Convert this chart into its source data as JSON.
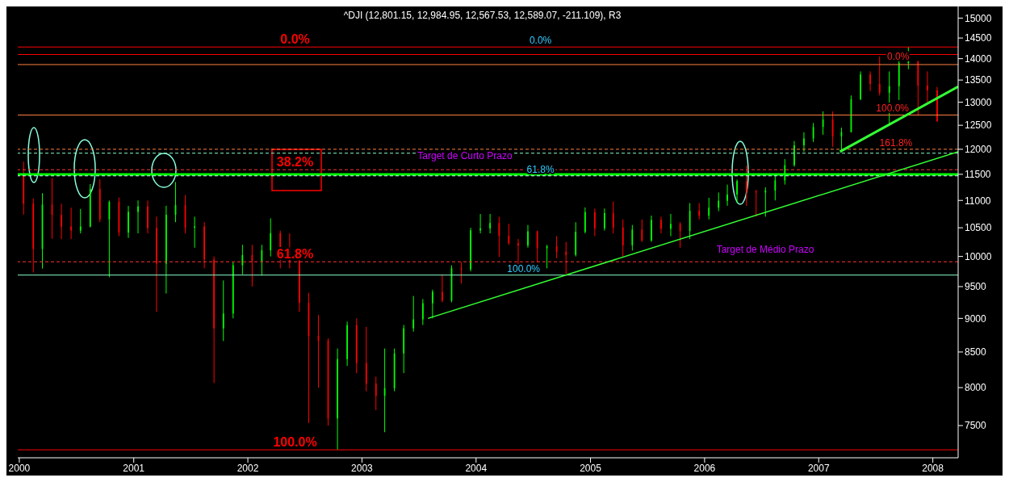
{
  "chart_data": {
    "type": "candlestick",
    "title": "^DJI (12,801.15, 12,984.95, 12,567.53, 12,589.07, -211.109), R3",
    "log": true,
    "xlim": [
      "1999-12-27",
      "2008-03-22"
    ],
    "xticks": [
      "2000",
      "2001",
      "2002",
      "2003",
      "2004",
      "2005",
      "2006",
      "2007",
      "2008"
    ],
    "ylim": [
      7100,
      15300
    ],
    "yticks": [
      7500,
      8000,
      8500,
      9000,
      9500,
      10000,
      10500,
      11000,
      11500,
      12000,
      12500,
      13000,
      13500,
      14000,
      14500,
      15000
    ],
    "x": [
      "2000-01-15",
      "2000-02-15",
      "2000-03-15",
      "2000-04-15",
      "2000-05-15",
      "2000-06-15",
      "2000-07-15",
      "2000-08-15",
      "2000-09-15",
      "2000-10-15",
      "2000-11-15",
      "2000-12-15",
      "2001-01-15",
      "2001-02-15",
      "2001-03-15",
      "2001-04-15",
      "2001-05-15",
      "2001-06-15",
      "2001-07-15",
      "2001-08-15",
      "2001-09-15",
      "2001-10-15",
      "2001-11-15",
      "2001-12-15",
      "2002-01-15",
      "2002-02-15",
      "2002-03-15",
      "2002-04-15",
      "2002-05-15",
      "2002-06-15",
      "2002-07-15",
      "2002-08-15",
      "2002-09-15",
      "2002-10-15",
      "2002-11-15",
      "2002-12-15",
      "2003-01-15",
      "2003-02-15",
      "2003-03-15",
      "2003-04-15",
      "2003-05-15",
      "2003-06-15",
      "2003-07-15",
      "2003-08-15",
      "2003-09-15",
      "2003-10-15",
      "2003-11-15",
      "2003-12-15",
      "2004-01-15",
      "2004-02-15",
      "2004-03-15",
      "2004-04-15",
      "2004-05-15",
      "2004-06-15",
      "2004-07-15",
      "2004-08-15",
      "2004-09-15",
      "2004-10-15",
      "2004-11-15",
      "2004-12-15",
      "2005-01-15",
      "2005-02-15",
      "2005-03-15",
      "2005-04-15",
      "2005-05-15",
      "2005-06-15",
      "2005-07-15",
      "2005-08-15",
      "2005-09-15",
      "2005-10-15",
      "2005-11-15",
      "2005-12-15",
      "2006-01-15",
      "2006-02-15",
      "2006-03-15",
      "2006-04-15",
      "2006-05-15",
      "2006-06-15",
      "2006-07-15",
      "2006-08-15",
      "2006-09-15",
      "2006-10-15",
      "2006-11-15",
      "2006-12-15",
      "2007-01-15",
      "2007-02-15",
      "2007-03-15",
      "2007-04-15",
      "2007-05-15",
      "2007-06-15",
      "2007-07-15",
      "2007-08-15",
      "2007-09-15",
      "2007-10-15",
      "2007-11-15",
      "2007-12-15",
      "2008-01-15"
    ],
    "ohlc": [
      [
        11497,
        11750,
        10738,
        10941
      ],
      [
        10941,
        11041,
        9731,
        10128
      ],
      [
        10128,
        11136,
        9796,
        10922
      ],
      [
        10922,
        11425,
        10306,
        10734
      ],
      [
        10734,
        10937,
        10299,
        10522
      ],
      [
        10522,
        10865,
        10300,
        10448
      ],
      [
        10448,
        10843,
        10400,
        10522
      ],
      [
        10522,
        11310,
        10506,
        11215
      ],
      [
        11215,
        11401,
        10600,
        10651
      ],
      [
        10651,
        10998,
        9654,
        10971
      ],
      [
        10971,
        11055,
        10351,
        10415
      ],
      [
        10415,
        10899,
        10320,
        10788
      ],
      [
        10788,
        11000,
        10400,
        10887
      ],
      [
        10887,
        11000,
        10400,
        10495
      ],
      [
        10495,
        10700,
        9100,
        9879
      ],
      [
        9879,
        10900,
        9389,
        10735
      ],
      [
        10735,
        11350,
        10600,
        10912
      ],
      [
        10912,
        11100,
        10400,
        10502
      ],
      [
        10502,
        10700,
        10150,
        10523
      ],
      [
        10523,
        10600,
        9800,
        9950
      ],
      [
        9950,
        10000,
        8062,
        8848
      ],
      [
        8848,
        9600,
        8660,
        9075
      ],
      [
        9075,
        9900,
        9000,
        9852
      ],
      [
        9852,
        10200,
        9700,
        10022
      ],
      [
        10022,
        10200,
        9500,
        9920
      ],
      [
        9920,
        10200,
        9680,
        10106
      ],
      [
        10106,
        10670,
        10000,
        10404
      ],
      [
        10404,
        10450,
        9800,
        9946
      ],
      [
        9946,
        10400,
        9800,
        9925
      ],
      [
        9925,
        9950,
        9100,
        9243
      ],
      [
        9243,
        9400,
        7532,
        8737
      ],
      [
        8737,
        9050,
        8000,
        8664
      ],
      [
        8664,
        8700,
        7500,
        7592
      ],
      [
        7592,
        8550,
        7197,
        8397
      ],
      [
        8397,
        8950,
        8300,
        8896
      ],
      [
        8896,
        9000,
        8200,
        8342
      ],
      [
        8342,
        8870,
        7950,
        8054
      ],
      [
        8054,
        8150,
        7700,
        7891
      ],
      [
        7891,
        8550,
        7416,
        7992
      ],
      [
        7992,
        8550,
        7950,
        8480
      ],
      [
        8480,
        8900,
        8200,
        8850
      ],
      [
        8850,
        9350,
        8800,
        8985
      ],
      [
        8985,
        9300,
        8900,
        9234
      ],
      [
        9234,
        9450,
        9000,
        9415
      ],
      [
        9415,
        9700,
        9250,
        9275
      ],
      [
        9275,
        9850,
        9250,
        9801
      ],
      [
        9801,
        9900,
        9550,
        9782
      ],
      [
        9782,
        10500,
        9750,
        10454
      ],
      [
        10454,
        10750,
        10400,
        10488
      ],
      [
        10488,
        10750,
        10400,
        10584
      ],
      [
        10584,
        10700,
        9990,
        10358
      ],
      [
        10358,
        10570,
        10200,
        10226
      ],
      [
        10226,
        10300,
        9850,
        10188
      ],
      [
        10188,
        10550,
        10150,
        10435
      ],
      [
        10435,
        10450,
        9900,
        10140
      ],
      [
        10140,
        10200,
        9800,
        10174
      ],
      [
        10174,
        10350,
        9970,
        10080
      ],
      [
        10080,
        10250,
        9708,
        10027
      ],
      [
        10027,
        10600,
        10000,
        10428
      ],
      [
        10428,
        10870,
        10400,
        10783
      ],
      [
        10783,
        10850,
        10350,
        10490
      ],
      [
        10490,
        10850,
        10450,
        10766
      ],
      [
        10766,
        10980,
        10400,
        10504
      ],
      [
        10504,
        10650,
        10000,
        10193
      ],
      [
        10193,
        10550,
        10100,
        10467
      ],
      [
        10467,
        10650,
        10250,
        10275
      ],
      [
        10275,
        10720,
        10250,
        10641
      ],
      [
        10641,
        10700,
        10400,
        10482
      ],
      [
        10482,
        10750,
        10350,
        10569
      ],
      [
        10569,
        10600,
        10150,
        10440
      ],
      [
        10440,
        10950,
        10300,
        10806
      ],
      [
        10806,
        10950,
        10650,
        10718
      ],
      [
        10718,
        11050,
        10650,
        10865
      ],
      [
        10865,
        11150,
        10800,
        10993
      ],
      [
        10993,
        11300,
        10900,
        11109
      ],
      [
        11109,
        11400,
        10950,
        11367
      ],
      [
        11367,
        11670,
        10900,
        11168
      ],
      [
        11168,
        11200,
        10700,
        11150
      ],
      [
        11150,
        11250,
        10700,
        11186
      ],
      [
        11186,
        11500,
        11000,
        11381
      ],
      [
        11381,
        11800,
        11300,
        11679
      ],
      [
        11679,
        12170,
        11650,
        12081
      ],
      [
        12081,
        12350,
        11950,
        12222
      ],
      [
        12222,
        12550,
        12150,
        12463
      ],
      [
        12463,
        12800,
        12300,
        12622
      ],
      [
        12622,
        12800,
        12050,
        12268
      ],
      [
        12268,
        12450,
        11940,
        12354
      ],
      [
        12354,
        13150,
        12350,
        13063
      ],
      [
        13063,
        13700,
        13050,
        13628
      ],
      [
        13628,
        13700,
        13250,
        13409
      ],
      [
        13409,
        14050,
        13150,
        13212
      ],
      [
        13212,
        13700,
        12500,
        13358
      ],
      [
        13358,
        14000,
        13050,
        13896
      ],
      [
        13896,
        14280,
        13750,
        13930
      ],
      [
        13930,
        13950,
        12700,
        13372
      ],
      [
        13372,
        13700,
        13000,
        13265
      ],
      [
        13265,
        13340,
        12568,
        12589
      ]
    ],
    "colors": [
      "#ff0000",
      "#ff0000",
      "#00ff00",
      "#ff0000",
      "#ff0000",
      "#ff0000",
      "#00ff00",
      "#00ff00",
      "#ff0000",
      "#00ff00",
      "#ff0000",
      "#00ff00",
      "#00ff00",
      "#ff0000",
      "#ff0000",
      "#00ff00",
      "#00ff00",
      "#ff0000",
      "#00ff00",
      "#ff0000",
      "#ff0000",
      "#00ff00",
      "#00ff00",
      "#00ff00",
      "#ff0000",
      "#00ff00",
      "#00ff00",
      "#ff0000",
      "#ff0000",
      "#ff0000",
      "#ff0000",
      "#ff0000",
      "#ff0000",
      "#00ff00",
      "#00ff00",
      "#ff0000",
      "#ff0000",
      "#ff0000",
      "#00ff00",
      "#00ff00",
      "#00ff00",
      "#00ff00",
      "#00ff00",
      "#00ff00",
      "#ff0000",
      "#00ff00",
      "#ff0000",
      "#00ff00",
      "#00ff00",
      "#00ff00",
      "#ff0000",
      "#ff0000",
      "#ff0000",
      "#00ff00",
      "#ff0000",
      "#00ff00",
      "#ff0000",
      "#ff0000",
      "#00ff00",
      "#00ff00",
      "#ff0000",
      "#00ff00",
      "#ff0000",
      "#ff0000",
      "#00ff00",
      "#ff0000",
      "#00ff00",
      "#ff0000",
      "#00ff00",
      "#ff0000",
      "#00ff00",
      "#ff0000",
      "#00ff00",
      "#00ff00",
      "#00ff00",
      "#00ff00",
      "#ff0000",
      "#ff0000",
      "#00ff00",
      "#00ff00",
      "#00ff00",
      "#00ff00",
      "#00ff00",
      "#00ff00",
      "#00ff00",
      "#ff0000",
      "#00ff00",
      "#00ff00",
      "#00ff00",
      "#ff0000",
      "#ff0000",
      "#00ff00",
      "#00ff00",
      "#00ff00",
      "#ff0000",
      "#ff0000",
      "#ff0000"
    ],
    "series": [
      {
        "type": "line",
        "color": "#33ff33",
        "x": [
          "2003-07-31",
          "2008-03-22"
        ],
        "values": [
          9000,
          11950
        ]
      },
      {
        "type": "line",
        "color": "#33ff33",
        "x": [
          "2007-03-10",
          "2008-03-22"
        ],
        "values": [
          11950,
          13350
        ]
      }
    ],
    "ref_lines": [
      {
        "axis": "y",
        "value": 14280,
        "color": "#ff0000",
        "line_style": "solid"
      },
      {
        "axis": "y",
        "value": 11590,
        "color": "#ff3333",
        "line_style": "dashed"
      },
      {
        "axis": "y",
        "value": 9910,
        "color": "#ff3333",
        "line_style": "dashed"
      },
      {
        "axis": "y",
        "value": 7197,
        "color": "#ff0000",
        "line_style": "solid"
      },
      {
        "axis": "y",
        "value": 11500,
        "color": "#00ff00",
        "line_style": "solid"
      },
      {
        "axis": "y",
        "value": 11470,
        "color": "#ccffff",
        "line_style": "dashed"
      },
      {
        "axis": "y",
        "value": 9688,
        "color": "#88ffcc",
        "line_style": "solid"
      },
      {
        "axis": "y",
        "value": 14100,
        "color": "#ff0000",
        "line_style": "solid"
      },
      {
        "axis": "y",
        "value": 13860,
        "color": "#ff8040",
        "line_style": "solid"
      },
      {
        "axis": "y",
        "value": 12720,
        "color": "#ff8040",
        "line_style": "solid"
      },
      {
        "axis": "y",
        "value": 12000,
        "color": "#ff8040",
        "line_style": "dashed"
      },
      {
        "axis": "y",
        "value": 11920,
        "color": "#88ffcc",
        "line_style": "dashed"
      }
    ],
    "annotations": [
      {
        "text": "0.0%",
        "x": "2002-06-01",
        "y": 14280
      },
      {
        "text": "38.2%",
        "x": "2002-06-01",
        "y": 11590
      },
      {
        "text": "61.8%",
        "x": "2002-06-01",
        "y": 9910
      },
      {
        "text": "100.0%",
        "x": "2002-06-01",
        "y": 7197
      },
      {
        "text": "0.0%",
        "x": "2004-07-25",
        "y": 14280
      },
      {
        "text": "61.8%",
        "x": "2004-07-25",
        "y": 11470
      },
      {
        "text": "100.0%",
        "x": "2004-06-01",
        "y": 9688
      },
      "Target de Curto Prazo",
      "Target de Médio Prazo",
      {
        "text": "0.0%",
        "x": "2007-09-12",
        "y": 13900
      },
      {
        "text": "100.0%",
        "x": "2007-08-25",
        "y": 12730
      },
      {
        "text": "161.8%",
        "x": "2007-09-05",
        "y": 12000
      }
    ]
  }
}
